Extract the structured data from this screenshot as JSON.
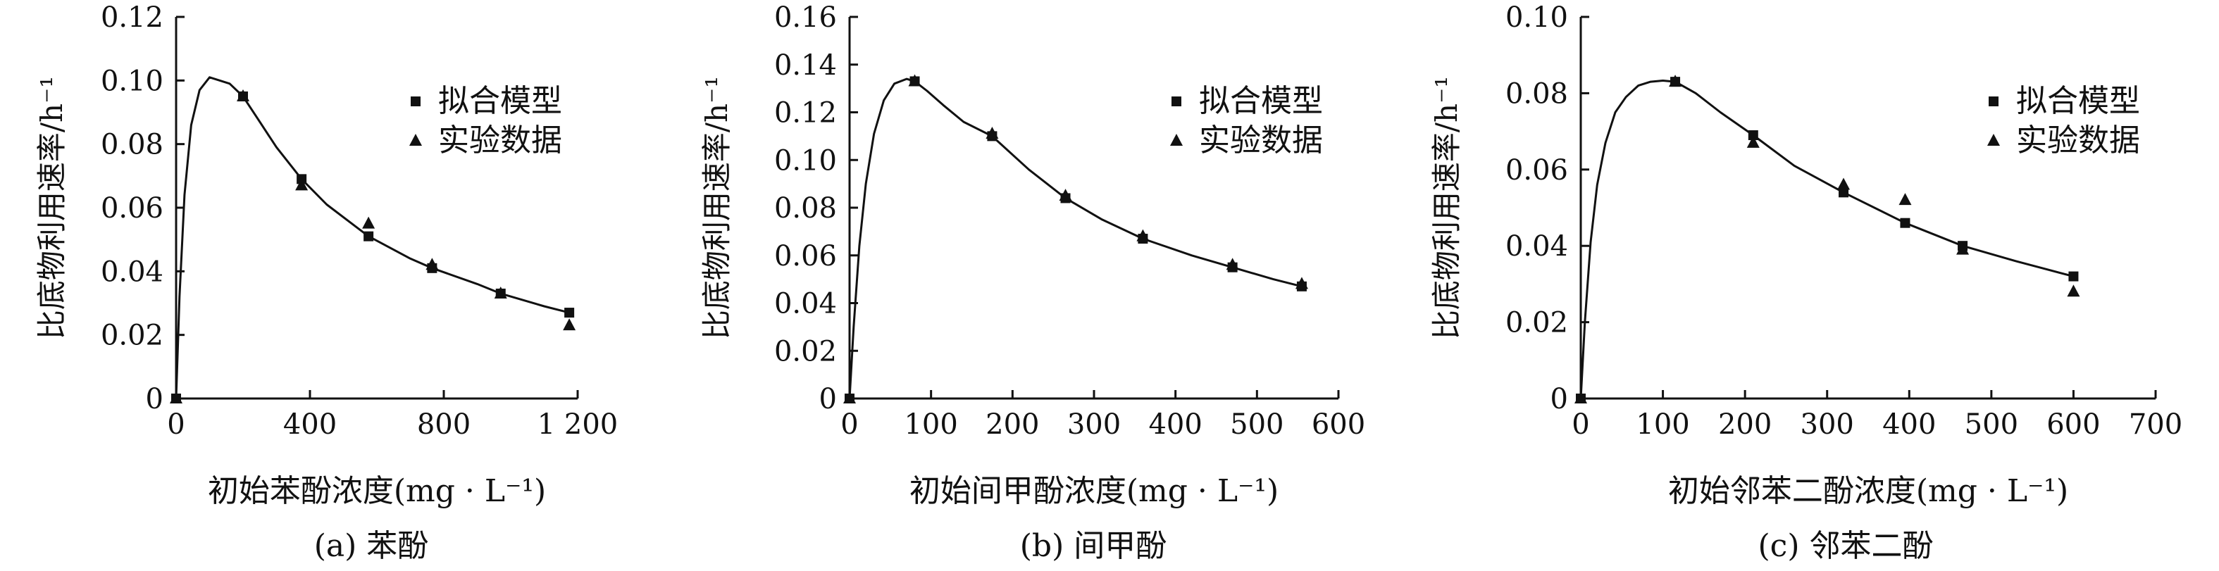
{
  "chart_data": [
    {
      "type": "scatter",
      "caption": "(a) 苯酚",
      "xlabel": "初始苯酚浓度(mg · L⁻¹)",
      "ylabel": "比底物利用速率/h⁻¹",
      "xlim": [
        0,
        1200
      ],
      "ylim": [
        0,
        0.12
      ],
      "xticks": [
        0,
        400,
        800,
        1200
      ],
      "xtick_labels": [
        "0",
        "400",
        "800",
        "1 200"
      ],
      "yticks": [
        0,
        0.02,
        0.04,
        0.06,
        0.08,
        0.1,
        0.12
      ],
      "ytick_labels": [
        "0",
        "0.02",
        "0.04",
        "0.06",
        "0.08",
        "0.10",
        "0.12"
      ],
      "legend": [
        "拟合模型",
        "实验数据"
      ],
      "legend_position": "top-right",
      "series": [
        {
          "name": "拟合模型",
          "marker": "square",
          "x": [
            0,
            200,
            375,
            575,
            765,
            970,
            1175
          ],
          "y": [
            0,
            0.095,
            0.069,
            0.051,
            0.041,
            0.033,
            0.027
          ]
        },
        {
          "name": "实验数据",
          "marker": "triangle",
          "x": [
            0,
            200,
            375,
            575,
            765,
            970,
            1175
          ],
          "y": [
            0,
            0.095,
            0.067,
            0.055,
            0.042,
            0.033,
            0.023
          ]
        }
      ],
      "curve": {
        "x": [
          0,
          10,
          25,
          45,
          70,
          100,
          130,
          160,
          200,
          250,
          300,
          375,
          450,
          575,
          700,
          765,
          900,
          970,
          1100,
          1175
        ],
        "y": [
          0,
          0.032,
          0.064,
          0.086,
          0.097,
          0.101,
          0.1,
          0.099,
          0.095,
          0.087,
          0.079,
          0.069,
          0.061,
          0.051,
          0.044,
          0.041,
          0.036,
          0.033,
          0.029,
          0.027
        ]
      }
    },
    {
      "type": "scatter",
      "caption": "(b) 间甲酚",
      "xlabel": "初始间甲酚浓度(mg · L⁻¹)",
      "ylabel": "比底物利用速率/h⁻¹",
      "xlim": [
        0,
        600
      ],
      "ylim": [
        0,
        0.16
      ],
      "xticks": [
        0,
        100,
        200,
        300,
        400,
        500,
        600
      ],
      "xtick_labels": [
        "0",
        "100",
        "200",
        "300",
        "400",
        "500",
        "600"
      ],
      "yticks": [
        0,
        0.02,
        0.04,
        0.06,
        0.08,
        0.1,
        0.12,
        0.14,
        0.16
      ],
      "ytick_labels": [
        "0",
        "0.02",
        "0.04",
        "0.06",
        "0.08",
        "0.10",
        "0.12",
        "0.14",
        "0.16"
      ],
      "legend": [
        "拟合模型",
        "实验数据"
      ],
      "legend_position": "top-right",
      "series": [
        {
          "name": "拟合模型",
          "marker": "square",
          "x": [
            0,
            80,
            175,
            265,
            360,
            470,
            555
          ],
          "y": [
            0,
            0.133,
            0.11,
            0.084,
            0.067,
            0.055,
            0.047
          ]
        },
        {
          "name": "实验数据",
          "marker": "triangle",
          "x": [
            0,
            80,
            175,
            265,
            360,
            470,
            555
          ],
          "y": [
            0,
            0.133,
            0.111,
            0.085,
            0.068,
            0.056,
            0.048
          ]
        }
      ],
      "curve": {
        "x": [
          0,
          5,
          12,
          20,
          30,
          42,
          55,
          70,
          80,
          95,
          115,
          140,
          175,
          220,
          265,
          310,
          360,
          420,
          470,
          520,
          555
        ],
        "y": [
          0,
          0.03,
          0.064,
          0.09,
          0.111,
          0.125,
          0.132,
          0.134,
          0.133,
          0.129,
          0.123,
          0.116,
          0.11,
          0.096,
          0.084,
          0.075,
          0.067,
          0.06,
          0.055,
          0.05,
          0.047
        ]
      }
    },
    {
      "type": "scatter",
      "caption": "(c) 邻苯二酚",
      "xlabel": "初始邻苯二酚浓度(mg · L⁻¹)",
      "ylabel": "比底物利用速率/h⁻¹",
      "xlim": [
        0,
        700
      ],
      "ylim": [
        0,
        0.1
      ],
      "xticks": [
        0,
        100,
        200,
        300,
        400,
        500,
        600,
        700
      ],
      "xtick_labels": [
        "0",
        "100",
        "200",
        "300",
        "400",
        "500",
        "600",
        "700"
      ],
      "yticks": [
        0,
        0.02,
        0.04,
        0.06,
        0.08,
        0.1
      ],
      "ytick_labels": [
        "0",
        "0.02",
        "0.04",
        "0.06",
        "0.08",
        "0.10"
      ],
      "legend": [
        "拟合模型",
        "实验数据"
      ],
      "legend_position": "top-right",
      "series": [
        {
          "name": "拟合模型",
          "marker": "square",
          "x": [
            0,
            115,
            210,
            320,
            395,
            465,
            600
          ],
          "y": [
            0,
            0.083,
            0.069,
            0.054,
            0.046,
            0.04,
            0.032
          ]
        },
        {
          "name": "实验数据",
          "marker": "triangle",
          "x": [
            0,
            115,
            210,
            320,
            395,
            465,
            600
          ],
          "y": [
            0,
            0.083,
            0.067,
            0.056,
            0.052,
            0.039,
            0.028
          ]
        }
      ],
      "curve": {
        "x": [
          0,
          5,
          12,
          20,
          30,
          42,
          55,
          70,
          85,
          100,
          115,
          140,
          170,
          210,
          260,
          320,
          395,
          465,
          530,
          600
        ],
        "y": [
          0,
          0.02,
          0.041,
          0.056,
          0.067,
          0.075,
          0.079,
          0.082,
          0.083,
          0.0833,
          0.083,
          0.08,
          0.075,
          0.069,
          0.061,
          0.054,
          0.046,
          0.04,
          0.036,
          0.032
        ]
      }
    }
  ]
}
